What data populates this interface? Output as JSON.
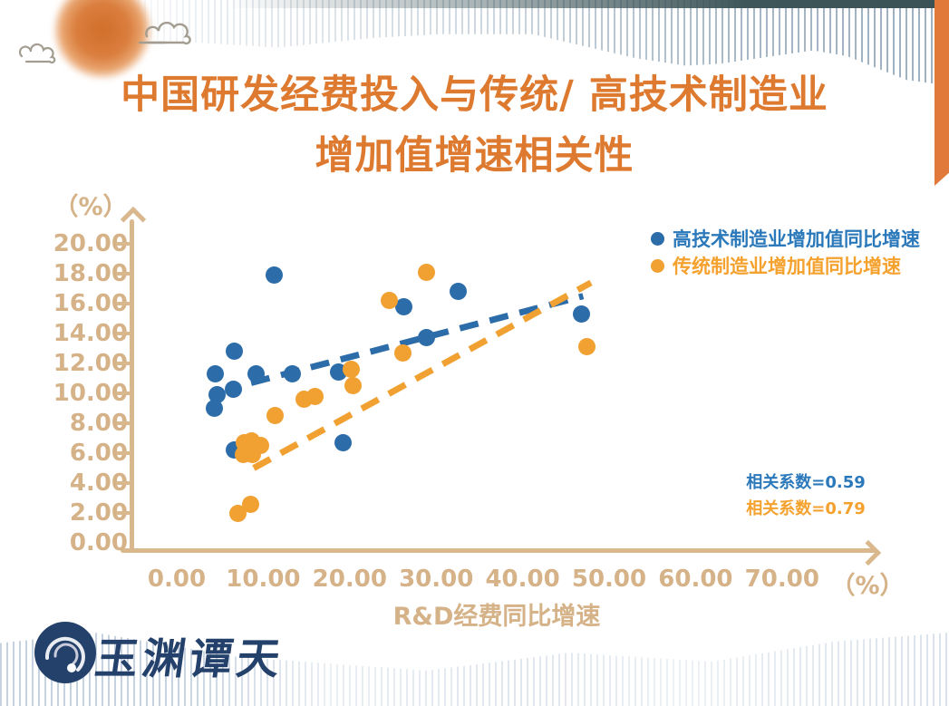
{
  "title": {
    "line1": "中国研发经费投入与传统/ 高技术制造业",
    "line2": "增加值增速相关性",
    "color": "#dd7a30"
  },
  "axes": {
    "color": "#d9b88d",
    "label_color": "#d5b287",
    "y_unit": "（%）",
    "x_unit": "（%）",
    "x_label": "R&D经费同比增速",
    "x_ticks": [
      "0.00",
      "10.00",
      "20.00",
      "30.00",
      "40.00",
      "50.00",
      "60.00",
      "70.00"
    ],
    "y_ticks": [
      "0.00",
      "2.00",
      "4.00",
      "6.00",
      "8.00",
      "10.00",
      "12.00",
      "14.00",
      "16.00",
      "18.00",
      "20.00"
    ]
  },
  "chart_data": {
    "type": "scatter",
    "title": "中国研发经费投入与传统/高技术制造业增加值增速相关性",
    "xlabel": "R&D经费同比增速 (%)",
    "ylabel": "(%)",
    "xlim": [
      0,
      70
    ],
    "ylim": [
      0,
      20
    ],
    "grid": false,
    "legend_position": "top-right",
    "series": [
      {
        "name": "高技术制造业增加值同比增速",
        "color": "#2b6ca9",
        "text_color": "#2b79ba",
        "correlation": "相关系数=0.59",
        "points": [
          [
            11.3,
            17.9
          ],
          [
            32.5,
            16.8
          ],
          [
            26.3,
            15.8
          ],
          [
            46.8,
            15.3
          ],
          [
            28.9,
            13.7
          ],
          [
            18.7,
            11.4
          ],
          [
            13.4,
            11.3
          ],
          [
            9.2,
            11.3
          ],
          [
            6.7,
            12.8
          ],
          [
            4.5,
            11.3
          ],
          [
            6.5,
            10.3
          ],
          [
            4.7,
            9.9
          ],
          [
            4.4,
            9.0
          ],
          [
            19.2,
            6.7
          ],
          [
            6.7,
            6.2
          ]
        ],
        "trend": {
          "x1": 8.6,
          "y1": 10.7,
          "x2": 47.0,
          "y2": 16.5
        }
      },
      {
        "name": "传统制造业增加值同比增速",
        "color": "#f0a131",
        "text_color": "#f5a12d",
        "correlation": "相关系数=0.79",
        "points": [
          [
            28.9,
            18.1
          ],
          [
            24.6,
            16.2
          ],
          [
            47.4,
            13.1
          ],
          [
            26.2,
            12.7
          ],
          [
            20.2,
            11.6
          ],
          [
            20.4,
            10.5
          ],
          [
            16.0,
            9.8
          ],
          [
            14.7,
            9.6
          ],
          [
            11.4,
            8.5
          ],
          [
            8.7,
            6.8
          ],
          [
            7.8,
            6.7
          ],
          [
            9.7,
            6.5
          ],
          [
            7.7,
            5.9
          ],
          [
            8.8,
            5.9
          ],
          [
            8.5,
            2.6
          ],
          [
            7.1,
            2.0
          ]
        ],
        "trend": {
          "x1": 8.9,
          "y1": 5.0,
          "x2": 47.9,
          "y2": 17.4
        }
      }
    ]
  },
  "footer": {
    "logo_text": "玉渊谭天",
    "logo_color": "#24416b"
  }
}
